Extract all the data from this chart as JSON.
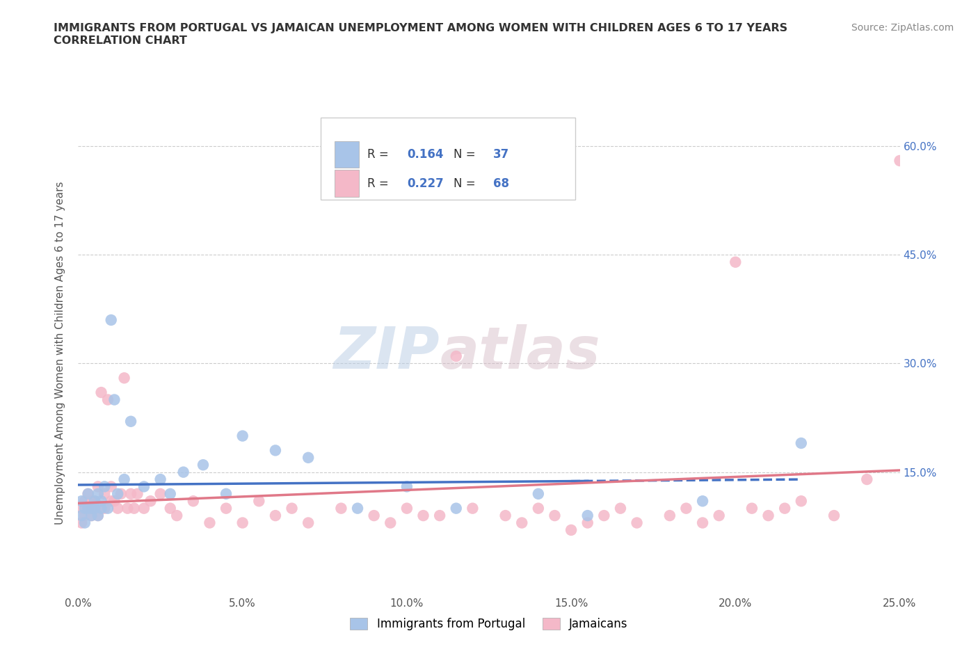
{
  "title_line1": "IMMIGRANTS FROM PORTUGAL VS JAMAICAN UNEMPLOYMENT AMONG WOMEN WITH CHILDREN AGES 6 TO 17 YEARS",
  "title_line2": "CORRELATION CHART",
  "source_text": "Source: ZipAtlas.com",
  "ylabel": "Unemployment Among Women with Children Ages 6 to 17 years",
  "xlim": [
    0.0,
    0.25
  ],
  "ylim": [
    -0.02,
    0.65
  ],
  "xticks": [
    0.0,
    0.05,
    0.1,
    0.15,
    0.2,
    0.25
  ],
  "xticklabels": [
    "0.0%",
    "5.0%",
    "10.0%",
    "15.0%",
    "20.0%",
    "25.0%"
  ],
  "yticks_left": [
    0.0,
    0.15,
    0.3,
    0.45,
    0.6
  ],
  "yticklabels_left": [
    "",
    "",
    "",
    "",
    ""
  ],
  "yticks_right": [
    0.15,
    0.3,
    0.45,
    0.6
  ],
  "yticklabels_right": [
    "15.0%",
    "30.0%",
    "45.0%",
    "60.0%"
  ],
  "grid_color": "#cccccc",
  "background_color": "#ffffff",
  "watermark_text": "ZIPatlas",
  "blue_dot_color": "#a8c4e8",
  "pink_dot_color": "#f4b8c8",
  "blue_line_color": "#4472c4",
  "pink_line_color": "#e07888",
  "legend_R1": "0.164",
  "legend_N1": "37",
  "legend_R2": "0.227",
  "legend_N2": "68",
  "blue_scatter_x": [
    0.001,
    0.001,
    0.002,
    0.002,
    0.003,
    0.003,
    0.004,
    0.004,
    0.005,
    0.005,
    0.006,
    0.006,
    0.007,
    0.007,
    0.008,
    0.009,
    0.01,
    0.011,
    0.012,
    0.014,
    0.016,
    0.02,
    0.025,
    0.028,
    0.032,
    0.038,
    0.045,
    0.05,
    0.06,
    0.07,
    0.085,
    0.1,
    0.115,
    0.14,
    0.155,
    0.19,
    0.22
  ],
  "blue_scatter_y": [
    0.09,
    0.11,
    0.1,
    0.08,
    0.1,
    0.12,
    0.1,
    0.09,
    0.11,
    0.1,
    0.12,
    0.09,
    0.11,
    0.1,
    0.13,
    0.1,
    0.36,
    0.25,
    0.12,
    0.14,
    0.22,
    0.13,
    0.14,
    0.12,
    0.15,
    0.16,
    0.12,
    0.2,
    0.18,
    0.17,
    0.1,
    0.13,
    0.1,
    0.12,
    0.09,
    0.11,
    0.19
  ],
  "pink_scatter_x": [
    0.001,
    0.001,
    0.002,
    0.002,
    0.003,
    0.003,
    0.004,
    0.004,
    0.005,
    0.005,
    0.006,
    0.006,
    0.007,
    0.008,
    0.008,
    0.009,
    0.01,
    0.01,
    0.011,
    0.012,
    0.013,
    0.014,
    0.015,
    0.016,
    0.017,
    0.018,
    0.02,
    0.022,
    0.025,
    0.028,
    0.03,
    0.035,
    0.04,
    0.045,
    0.05,
    0.055,
    0.06,
    0.065,
    0.07,
    0.08,
    0.09,
    0.095,
    0.1,
    0.105,
    0.11,
    0.115,
    0.12,
    0.13,
    0.135,
    0.14,
    0.145,
    0.15,
    0.155,
    0.16,
    0.165,
    0.17,
    0.18,
    0.185,
    0.19,
    0.195,
    0.2,
    0.205,
    0.21,
    0.215,
    0.22,
    0.23,
    0.24,
    0.25
  ],
  "pink_scatter_y": [
    0.1,
    0.08,
    0.11,
    0.09,
    0.1,
    0.12,
    0.11,
    0.09,
    0.11,
    0.1,
    0.13,
    0.09,
    0.26,
    0.12,
    0.1,
    0.25,
    0.13,
    0.11,
    0.11,
    0.1,
    0.12,
    0.28,
    0.1,
    0.12,
    0.1,
    0.12,
    0.1,
    0.11,
    0.12,
    0.1,
    0.09,
    0.11,
    0.08,
    0.1,
    0.08,
    0.11,
    0.09,
    0.1,
    0.08,
    0.1,
    0.09,
    0.08,
    0.1,
    0.09,
    0.09,
    0.31,
    0.1,
    0.09,
    0.08,
    0.1,
    0.09,
    0.07,
    0.08,
    0.09,
    0.1,
    0.08,
    0.09,
    0.1,
    0.08,
    0.09,
    0.44,
    0.1,
    0.09,
    0.1,
    0.11,
    0.09,
    0.14,
    0.58
  ]
}
